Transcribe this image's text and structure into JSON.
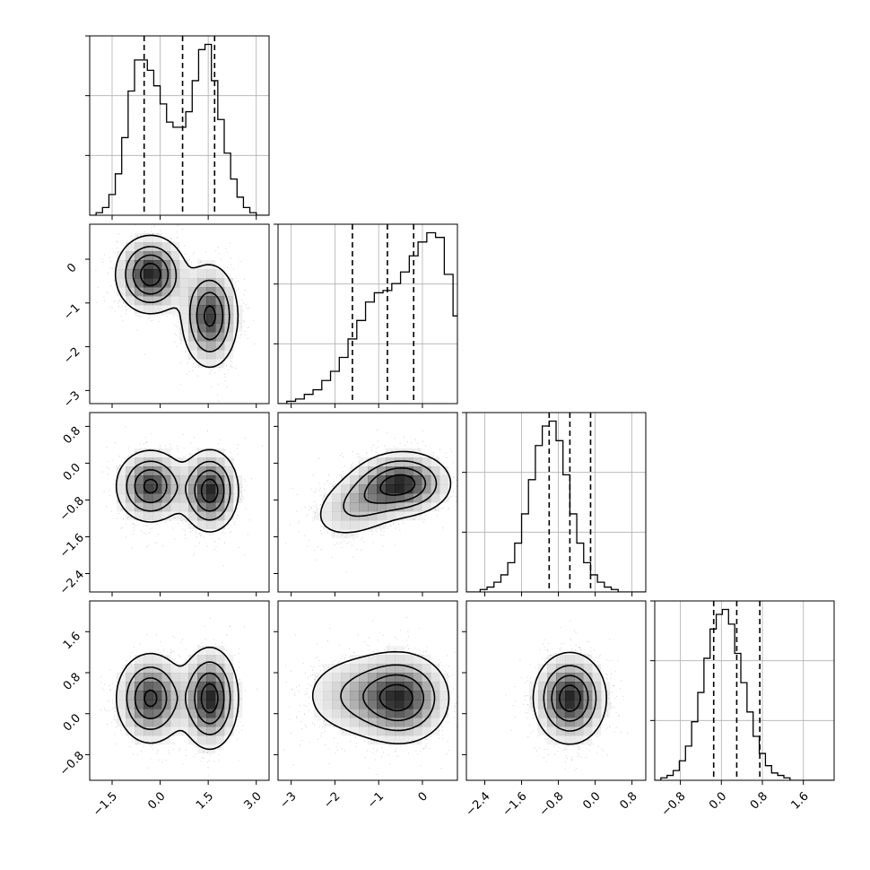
{
  "chart_data": {
    "type": "corner",
    "title": "",
    "grid": true,
    "variables": [
      {
        "range": [
          -2.2,
          3.4
        ],
        "ticks": [
          -1.5,
          0.0,
          1.5,
          3.0
        ],
        "tick_labels": [
          "−1.5",
          "0.0",
          "1.5",
          "3.0"
        ],
        "quantiles": [
          -0.5,
          0.7,
          1.7
        ],
        "hist": {
          "x_start": -2.2,
          "bin_width": 0.2,
          "counts": [
            0,
            1,
            3,
            8,
            16,
            30,
            48,
            60,
            60,
            56,
            50,
            43,
            36,
            34,
            34,
            40,
            52,
            64,
            66,
            52,
            37,
            24,
            14,
            7,
            3,
            1,
            0,
            0
          ]
        },
        "modes": [
          [
            -0.3,
            1.0
          ],
          [
            1.6,
            1.1
          ]
        ]
      },
      {
        "range": [
          -3.3,
          0.8
        ],
        "ticks": [
          -3,
          -2,
          -1,
          0
        ],
        "tick_labels": [
          "−3",
          "−2",
          "−1",
          "0"
        ],
        "quantiles": [
          -1.6,
          -0.8,
          -0.2
        ],
        "hist": {
          "x_start": -3.3,
          "bin_width": 0.2,
          "counts": [
            0,
            1,
            2,
            4,
            6,
            10,
            14,
            20,
            28,
            36,
            44,
            48,
            49,
            52,
            57,
            64,
            70,
            74,
            72,
            56,
            38,
            24,
            14,
            6,
            2,
            1
          ]
        },
        "modes": [
          [
            -0.35,
            1.0
          ],
          [
            -1.3,
            1.0
          ]
        ]
      },
      {
        "range": [
          -2.8,
          1.1
        ],
        "ticks": [
          -2.4,
          -1.6,
          -0.8,
          0.0,
          0.8
        ],
        "tick_labels": [
          "−2.4",
          "−1.6",
          "−0.8",
          "0.0",
          "0.8"
        ],
        "quantiles": [
          -1.0,
          -0.55,
          -0.1
        ],
        "hist": {
          "x_start": -2.8,
          "bin_width": 0.15,
          "counts": [
            0,
            0,
            1,
            2,
            4,
            7,
            12,
            20,
            32,
            46,
            60,
            68,
            70,
            62,
            48,
            32,
            20,
            12,
            7,
            4,
            2,
            1,
            0,
            0,
            0,
            0
          ]
        },
        "modes": [
          [
            -0.5,
            1.0
          ],
          [
            -0.55,
            1.0
          ]
        ]
      },
      {
        "range": [
          -1.3,
          2.2
        ],
        "ticks": [
          -0.8,
          0.0,
          0.8,
          1.6
        ],
        "tick_labels": [
          "−0.8",
          "0.0",
          "0.8",
          "1.6"
        ],
        "quantiles": [
          -0.15,
          0.3,
          0.75
        ],
        "hist": {
          "x_start": -1.3,
          "bin_width": 0.12,
          "counts": [
            0,
            1,
            2,
            4,
            8,
            14,
            24,
            36,
            50,
            62,
            68,
            70,
            64,
            52,
            40,
            28,
            18,
            11,
            6,
            3,
            2,
            1,
            0,
            0,
            0,
            0,
            0,
            0,
            0
          ]
        },
        "modes": [
          [
            0.3,
            1.0
          ],
          [
            0.35,
            1.0
          ]
        ]
      }
    ],
    "axes": [
      {
        "row": 0,
        "col": 0,
        "kind": "hist",
        "var": 0
      },
      {
        "row": 1,
        "col": 0,
        "kind": "2d",
        "x": 0,
        "y": 1
      },
      {
        "row": 1,
        "col": 1,
        "kind": "hist",
        "var": 1
      },
      {
        "row": 2,
        "col": 0,
        "kind": "2d",
        "x": 0,
        "y": 2
      },
      {
        "row": 2,
        "col": 1,
        "kind": "2d",
        "x": 1,
        "y": 2
      },
      {
        "row": 2,
        "col": 2,
        "kind": "hist",
        "var": 2
      },
      {
        "row": 3,
        "col": 0,
        "kind": "2d",
        "x": 0,
        "y": 3
      },
      {
        "row": 3,
        "col": 1,
        "kind": "2d",
        "x": 1,
        "y": 3
      },
      {
        "row": 3,
        "col": 2,
        "kind": "2d",
        "x": 2,
        "y": 3
      },
      {
        "row": 3,
        "col": 3,
        "kind": "hist",
        "var": 3
      }
    ],
    "joint": {
      "0-1": [
        {
          "mx": -0.3,
          "my": -0.35,
          "sx": 0.55,
          "sy": 0.45,
          "rho": 0.0,
          "w": 1.0
        },
        {
          "mx": 1.55,
          "my": -1.3,
          "sx": 0.45,
          "sy": 0.6,
          "rho": 0.0,
          "w": 1.0
        }
      ],
      "0-2": [
        {
          "mx": -0.3,
          "my": -0.5,
          "sx": 0.55,
          "sy": 0.4,
          "rho": 0.0,
          "w": 1.0
        },
        {
          "mx": 1.55,
          "my": -0.6,
          "sx": 0.45,
          "sy": 0.45,
          "rho": 0.0,
          "w": 1.0
        }
      ],
      "1-2": [
        {
          "mx": -0.4,
          "my": -0.45,
          "sx": 0.55,
          "sy": 0.35,
          "rho": 0.0,
          "w": 1.0
        },
        {
          "mx": -1.3,
          "my": -0.8,
          "sx": 0.65,
          "sy": 0.45,
          "rho": 0.45,
          "w": 0.8
        }
      ],
      "0-3": [
        {
          "mx": -0.3,
          "my": 0.3,
          "sx": 0.55,
          "sy": 0.45,
          "rho": 0.0,
          "w": 1.0
        },
        {
          "mx": 1.55,
          "my": 0.3,
          "sx": 0.45,
          "sy": 0.5,
          "rho": 0.0,
          "w": 1.0
        }
      ],
      "1-3": [
        {
          "mx": -0.45,
          "my": 0.3,
          "sx": 0.55,
          "sy": 0.45,
          "rho": 0.0,
          "w": 1.0
        },
        {
          "mx": -1.4,
          "my": 0.35,
          "sx": 0.75,
          "sy": 0.45,
          "rho": 0.0,
          "w": 0.7
        }
      ],
      "2-3": [
        {
          "mx": -0.55,
          "my": 0.3,
          "sx": 0.4,
          "sy": 0.45,
          "rho": 0.0,
          "w": 1.0
        }
      ]
    },
    "colors": {
      "line": "#000000",
      "grid": "#b0b0b0",
      "points": "#000000",
      "fill": "#000000"
    }
  }
}
